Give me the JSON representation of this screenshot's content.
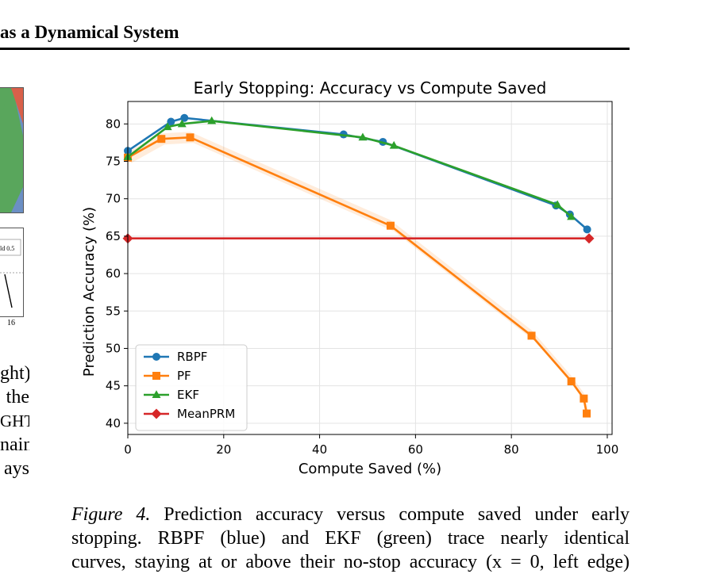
{
  "header": {
    "title": "as a Dynamical System"
  },
  "left_fragment": {
    "legend_snippet": "ld 0.5",
    "tick_label": "16",
    "text_lines": [
      "ght)",
      "the",
      "GHT",
      "nain",
      "ays"
    ]
  },
  "caption": {
    "label": "Figure 4.",
    "line1": "Prediction accuracy versus compute saved under early",
    "line2": "stopping.  RBPF (blue) and EKF (green) trace nearly identical",
    "line3": "curves, staying at or above their no-stop accuracy (x = 0, left edge)"
  },
  "chart_data": {
    "type": "line",
    "title": "Early Stopping: Accuracy vs Compute Saved",
    "xlabel": "Compute Saved (%)",
    "ylabel": "Prediction Accuracy (%)",
    "xlim": [
      0,
      101
    ],
    "ylim": [
      38.5,
      83
    ],
    "xticks": [
      0,
      20,
      40,
      60,
      80,
      100
    ],
    "yticks": [
      40,
      45,
      50,
      55,
      60,
      65,
      70,
      75,
      80
    ],
    "grid": true,
    "legend_position": "lower-left",
    "series": [
      {
        "name": "RBPF",
        "color": "#1f77b4",
        "marker": "circle",
        "x": [
          0,
          9,
          11.8,
          45,
          53.2,
          89.3,
          92.2,
          95.8
        ],
        "y": [
          76.4,
          80.3,
          80.8,
          78.6,
          77.6,
          69.1,
          67.9,
          65.9
        ]
      },
      {
        "name": "PF",
        "color": "#ff7f0e",
        "marker": "square",
        "band": true,
        "x": [
          0,
          7,
          13,
          54.8,
          84.2,
          92.5,
          95.1,
          95.7
        ],
        "y": [
          75.5,
          78.0,
          78.2,
          66.4,
          51.7,
          45.6,
          43.3,
          41.3
        ]
      },
      {
        "name": "EKF",
        "color": "#2ca02c",
        "marker": "triangle",
        "x": [
          0,
          8.3,
          11.3,
          17.5,
          49,
          55.5,
          89.6,
          92.5
        ],
        "y": [
          75.6,
          79.6,
          80.0,
          80.4,
          78.2,
          77.1,
          69.2,
          67.6
        ]
      },
      {
        "name": "MeanPRM",
        "color": "#d62728",
        "marker": "diamond",
        "x": [
          0,
          96.2
        ],
        "y": [
          64.7,
          64.7
        ]
      }
    ]
  }
}
